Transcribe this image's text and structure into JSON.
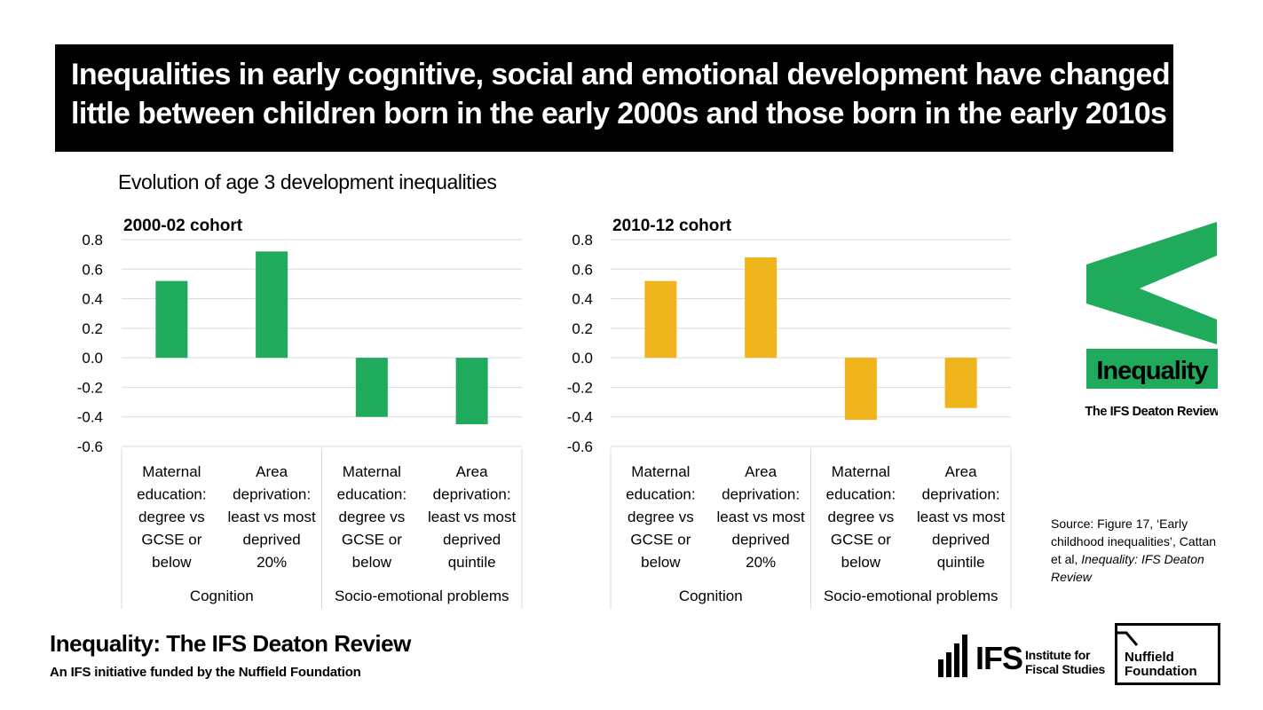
{
  "headline": {
    "line1": "Inequalities in early cognitive, social and emotional development have changed",
    "line2": "little between children born in the early 2000s and those born in the early 2010s"
  },
  "subtitle": "Evolution of age 3 development inequalities",
  "chart_data": [
    {
      "type": "bar",
      "title": "2000-02 cohort",
      "color": "#1faa5c",
      "ylim": [
        -0.6,
        0.8
      ],
      "yticks": [
        "0.8",
        "0.6",
        "0.4",
        "0.2",
        "0.0",
        "-0.2",
        "-0.4",
        "-0.6"
      ],
      "categories": [
        [
          "Maternal",
          "education:",
          "degree vs",
          "GCSE or",
          "below"
        ],
        [
          "Area",
          "deprivation:",
          "least vs most",
          "deprived",
          "20%"
        ],
        [
          "Maternal",
          "education:",
          "degree vs",
          "GCSE or",
          "below"
        ],
        [
          "Area",
          "deprivation:",
          "least vs most",
          "deprived",
          "quintile"
        ]
      ],
      "groups": [
        "Cognition",
        "Socio-emotional problems"
      ],
      "values": [
        0.52,
        0.72,
        -0.4,
        -0.45
      ],
      "grid": true
    },
    {
      "type": "bar",
      "title": "2010-12 cohort",
      "color": "#f0b51c",
      "ylim": [
        -0.6,
        0.8
      ],
      "yticks": [
        "0.8",
        "0.6",
        "0.4",
        "0.2",
        "0.0",
        "-0.2",
        "-0.4",
        "-0.6"
      ],
      "categories": [
        [
          "Maternal",
          "education:",
          "degree vs",
          "GCSE or",
          "below"
        ],
        [
          "Area",
          "deprivation:",
          "least vs most",
          "deprived",
          "20%"
        ],
        [
          "Maternal",
          "education:",
          "degree vs",
          "GCSE or",
          "below"
        ],
        [
          "Area",
          "deprivation:",
          "least vs most",
          "deprived",
          "quintile"
        ]
      ],
      "groups": [
        "Cognition",
        "Socio-emotional problems"
      ],
      "values": [
        0.52,
        0.68,
        -0.42,
        -0.34
      ],
      "grid": true
    }
  ],
  "logo": {
    "label": "Inequality",
    "sub": "The IFS Deaton Review",
    "color": "#1faa5c"
  },
  "source": {
    "prefix": "Source: Figure 17, ‘Early childhood inequalities’, Cattan et al, ",
    "italic": "Inequality: IFS Deaton Review"
  },
  "footer": {
    "title": "Inequality: The IFS Deaton Review",
    "subtitle": "An IFS initiative funded by the Nuffield Foundation"
  },
  "ifs_logo": {
    "short": "IFS",
    "line1": "Institute for",
    "line2": "Fiscal Studies"
  },
  "nuffield_logo": {
    "line1": "Nuffield",
    "line2": "Foundation"
  }
}
